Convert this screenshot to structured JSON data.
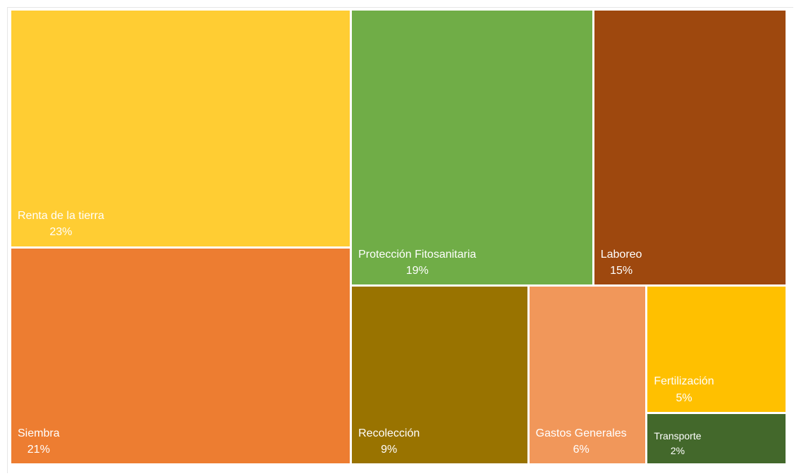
{
  "chart_data": {
    "type": "treemap",
    "items": [
      {
        "id": "renta",
        "label": "Renta de la tierra",
        "percent_label": "23%",
        "value": 23,
        "color": "#FFCD33"
      },
      {
        "id": "siembra",
        "label": "Siembra",
        "percent_label": "21%",
        "value": 21,
        "color": "#ED7D31"
      },
      {
        "id": "proteccion",
        "label": "Protección Fitosanitaria",
        "percent_label": "19%",
        "value": 19,
        "color": "#70AD47"
      },
      {
        "id": "laboreo",
        "label": "Laboreo",
        "percent_label": "15%",
        "value": 15,
        "color": "#9E480E"
      },
      {
        "id": "recoleccion",
        "label": "Recolección",
        "percent_label": "9%",
        "value": 9,
        "color": "#997300"
      },
      {
        "id": "gastos",
        "label": "Gastos Generales",
        "percent_label": "6%",
        "value": 6,
        "color": "#F1975A"
      },
      {
        "id": "fertilizacion",
        "label": "Fertilización",
        "percent_label": "5%",
        "value": 5,
        "color": "#FFC000"
      },
      {
        "id": "transporte",
        "label": "Transporte",
        "percent_label": "2%",
        "value": 2,
        "color": "#43682B"
      }
    ]
  }
}
